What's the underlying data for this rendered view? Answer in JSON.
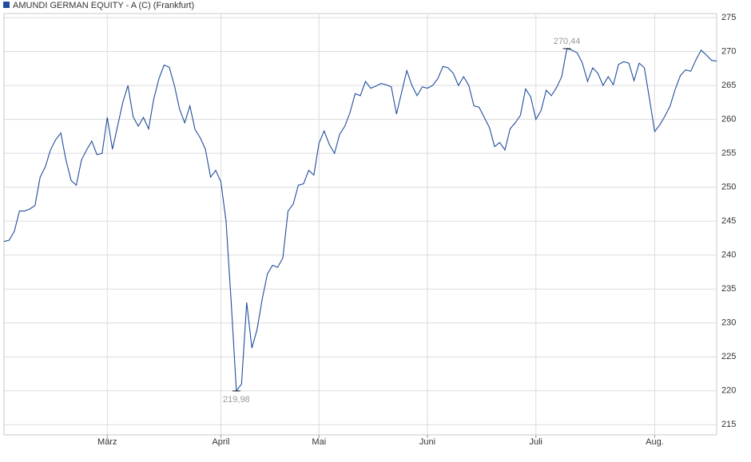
{
  "chart_data": {
    "type": "line",
    "categories": [
      null,
      null,
      null,
      null,
      null,
      null,
      null,
      null,
      null,
      null,
      null,
      null,
      null,
      null,
      null,
      null,
      null,
      null,
      null,
      null,
      "März",
      null,
      null,
      null,
      null,
      null,
      null,
      null,
      null,
      null,
      null,
      null,
      null,
      null,
      null,
      null,
      null,
      null,
      null,
      null,
      null,
      null,
      "April",
      null,
      null,
      null,
      null,
      null,
      null,
      null,
      null,
      null,
      null,
      null,
      null,
      null,
      null,
      null,
      null,
      null,
      null,
      "Mai",
      null,
      null,
      null,
      null,
      null,
      null,
      null,
      null,
      null,
      null,
      null,
      null,
      null,
      null,
      null,
      null,
      null,
      null,
      null,
      null,
      "Juni",
      null,
      null,
      null,
      null,
      null,
      null,
      null,
      null,
      null,
      null,
      null,
      null,
      null,
      null,
      null,
      null,
      null,
      null,
      null,
      null,
      "Juli",
      null,
      null,
      null,
      null,
      null,
      null,
      null,
      null,
      null,
      null,
      null,
      null,
      null,
      null,
      null,
      null,
      null,
      null,
      null,
      null,
      null,
      null,
      "Aug.",
      null,
      null,
      null,
      null,
      null,
      null,
      null,
      null,
      null,
      null,
      null,
      null
    ],
    "series": [
      {
        "name": "AMUNDI GERMAN EQUITY - A (C) (Frankfurt)",
        "color": "#1f4e9c",
        "values": [
          242,
          242.2,
          243.5,
          246.5,
          246.5,
          246.8,
          247.3,
          251.5,
          253,
          255.5,
          257,
          258,
          254,
          251,
          250.3,
          254,
          255.5,
          256.8,
          254.8,
          255,
          260.3,
          255.6,
          259,
          262.5,
          265,
          260.4,
          259,
          260.3,
          258.6,
          263,
          266,
          268,
          267.7,
          265,
          261.5,
          259.5,
          262,
          258.5,
          257.3,
          255.6,
          251.5,
          252.5,
          250.8,
          245,
          233,
          219.98,
          221,
          233,
          226.3,
          229,
          233.5,
          237.2,
          238.5,
          238.2,
          239.6,
          246.5,
          247.5,
          250.3,
          250.5,
          252.5,
          251.8,
          256.5,
          258.3,
          256.3,
          255,
          257.8,
          259,
          261,
          263.8,
          263.5,
          265.6,
          264.6,
          264.9,
          265.3,
          265.1,
          264.8,
          260.8,
          264,
          267.2,
          265,
          263.5,
          264.8,
          264.6,
          265,
          266,
          267.8,
          267.6,
          266.8,
          265,
          266.3,
          265,
          262,
          261.8,
          260.3,
          258.8,
          256,
          256.6,
          255.5,
          258.6,
          259.5,
          260.6,
          264.5,
          263.3,
          260,
          261.3,
          264.3,
          263.5,
          264.7,
          266.3,
          270.44,
          270.2,
          269.8,
          268.3,
          265.6,
          267.6,
          266.8,
          265,
          266.3,
          265.1,
          268.1,
          268.5,
          268.3,
          265.7,
          268.3,
          267.6,
          263,
          258.2,
          259.2,
          260.5,
          262,
          264.5,
          266.5,
          267.3,
          267.1,
          268.8,
          270.2,
          269.5,
          268.7,
          268.6
        ],
        "value_labels": [
          null,
          null,
          null,
          null,
          null,
          null,
          null,
          null,
          null,
          null,
          null,
          null,
          null,
          null,
          null,
          null,
          null,
          null,
          null,
          null,
          null,
          null,
          null,
          null,
          null,
          null,
          null,
          null,
          null,
          null,
          null,
          null,
          null,
          null,
          null,
          null,
          null,
          null,
          null,
          null,
          null,
          null,
          null,
          null,
          null,
          "219,98",
          null,
          null,
          null,
          null,
          null,
          null,
          null,
          null,
          null,
          null,
          null,
          null,
          null,
          null,
          null,
          null,
          null,
          null,
          null,
          null,
          null,
          null,
          null,
          null,
          null,
          null,
          null,
          null,
          null,
          null,
          null,
          null,
          null,
          null,
          null,
          null,
          null,
          null,
          null,
          null,
          null,
          null,
          null,
          null,
          null,
          null,
          null,
          null,
          null,
          null,
          null,
          null,
          null,
          null,
          null,
          null,
          null,
          null,
          null,
          null,
          null,
          null,
          null,
          "270,44",
          null,
          null,
          null,
          null,
          null,
          null,
          null,
          null,
          null,
          null,
          null,
          null,
          null,
          null,
          null,
          null,
          null,
          null,
          null,
          null,
          null,
          null,
          null,
          null,
          null,
          null,
          null,
          null,
          null
        ]
      }
    ],
    "ylim": [
      213.5,
      275.6
    ],
    "yticks": [
      215,
      220,
      225,
      230,
      235,
      240,
      245,
      250,
      255,
      260,
      265,
      270,
      275
    ],
    "grid": true
  }
}
